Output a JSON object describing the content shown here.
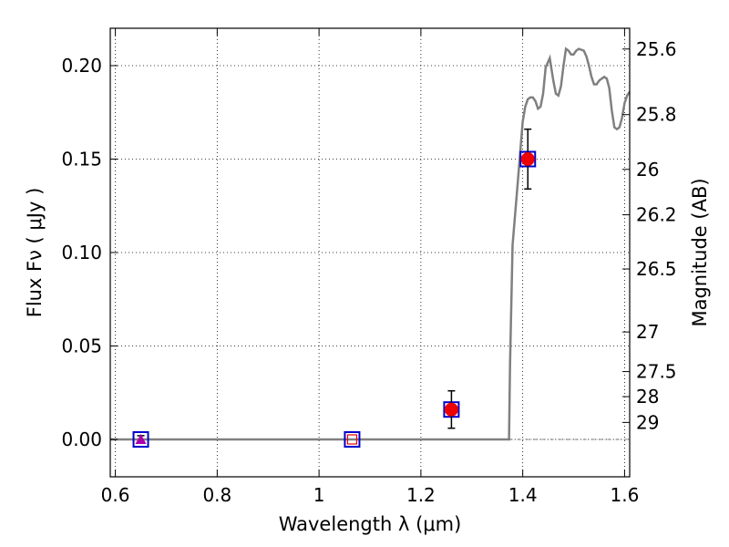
{
  "chart_data": {
    "type": "scatter",
    "title": "",
    "xlabel": "Wavelength  λ (μm)",
    "ylabel": "Flux  Fν  ( μJy )",
    "ylabel_right": "Magnitude (AB)",
    "xlim": [
      0.59,
      1.61
    ],
    "ylim": [
      -0.02,
      0.22
    ],
    "grid": true,
    "grid_style": "dotted",
    "x_ticks": [
      {
        "value": 0.6,
        "label": "0.6"
      },
      {
        "value": 0.8,
        "label": "0.8"
      },
      {
        "value": 1.0,
        "label": "1"
      },
      {
        "value": 1.2,
        "label": "1.2"
      },
      {
        "value": 1.4,
        "label": "1.4"
      },
      {
        "value": 1.6,
        "label": "1.6"
      }
    ],
    "y_ticks": [
      {
        "value": 0.0,
        "label": "0.00"
      },
      {
        "value": 0.05,
        "label": "0.05"
      },
      {
        "value": 0.1,
        "label": "0.10"
      },
      {
        "value": 0.15,
        "label": "0.15"
      },
      {
        "value": 0.2,
        "label": "0.20"
      }
    ],
    "right_ticks": [
      {
        "flux": 0.2089,
        "label": "25.6"
      },
      {
        "flux": 0.1738,
        "label": "25.8"
      },
      {
        "flux": 0.1445,
        "label": "26"
      },
      {
        "flux": 0.1202,
        "label": "26.2"
      },
      {
        "flux": 0.0912,
        "label": "26.5"
      },
      {
        "flux": 0.0575,
        "label": "27"
      },
      {
        "flux": 0.0363,
        "label": "27.5"
      },
      {
        "flux": 0.0229,
        "label": "28"
      },
      {
        "flux": 0.0091,
        "label": "29"
      }
    ],
    "series": [
      {
        "kind": "line",
        "color": "#808080",
        "points": [
          [
            0.59,
            0.0
          ],
          [
            1.373,
            0.0
          ],
          [
            1.375,
            0.04
          ],
          [
            1.38,
            0.104
          ],
          [
            1.39,
            0.137
          ],
          [
            1.4,
            0.17
          ],
          [
            1.405,
            0.178
          ],
          [
            1.41,
            0.182
          ],
          [
            1.415,
            0.183
          ],
          [
            1.42,
            0.183
          ],
          [
            1.425,
            0.181
          ],
          [
            1.43,
            0.177
          ],
          [
            1.435,
            0.178
          ],
          [
            1.44,
            0.185
          ],
          [
            1.445,
            0.199
          ],
          [
            1.453,
            0.204
          ],
          [
            1.46,
            0.192
          ],
          [
            1.465,
            0.185
          ],
          [
            1.47,
            0.184
          ],
          [
            1.475,
            0.189
          ],
          [
            1.48,
            0.2
          ],
          [
            1.485,
            0.209
          ],
          [
            1.49,
            0.208
          ],
          [
            1.495,
            0.206
          ],
          [
            1.5,
            0.206
          ],
          [
            1.505,
            0.208
          ],
          [
            1.51,
            0.209
          ],
          [
            1.52,
            0.208
          ],
          [
            1.525,
            0.205
          ],
          [
            1.53,
            0.2
          ],
          [
            1.535,
            0.194
          ],
          [
            1.54,
            0.19
          ],
          [
            1.545,
            0.19
          ],
          [
            1.55,
            0.192
          ],
          [
            1.555,
            0.193
          ],
          [
            1.56,
            0.194
          ],
          [
            1.565,
            0.193
          ],
          [
            1.57,
            0.188
          ],
          [
            1.575,
            0.176
          ],
          [
            1.58,
            0.167
          ],
          [
            1.585,
            0.166
          ],
          [
            1.59,
            0.167
          ],
          [
            1.595,
            0.172
          ],
          [
            1.6,
            0.18
          ],
          [
            1.605,
            0.184
          ],
          [
            1.61,
            0.186
          ]
        ]
      },
      {
        "kind": "squares",
        "color": "#0000cc",
        "points": [
          [
            0.65,
            0.0
          ],
          [
            1.065,
            0.0
          ],
          [
            1.26,
            0.016
          ],
          [
            1.41,
            0.15
          ]
        ]
      },
      {
        "kind": "points",
        "color": "#ee0000",
        "points": [
          [
            1.26,
            0.016
          ],
          [
            1.41,
            0.15
          ]
        ],
        "errors": [
          0.01,
          0.016
        ]
      },
      {
        "kind": "triangle",
        "color": "#aa00aa",
        "points": [
          [
            0.65,
            0.0
          ]
        ],
        "errors": [
          0.002
        ]
      },
      {
        "kind": "hollow_square",
        "color": "#ee0000",
        "points": [
          [
            1.065,
            0.0
          ]
        ]
      }
    ]
  }
}
